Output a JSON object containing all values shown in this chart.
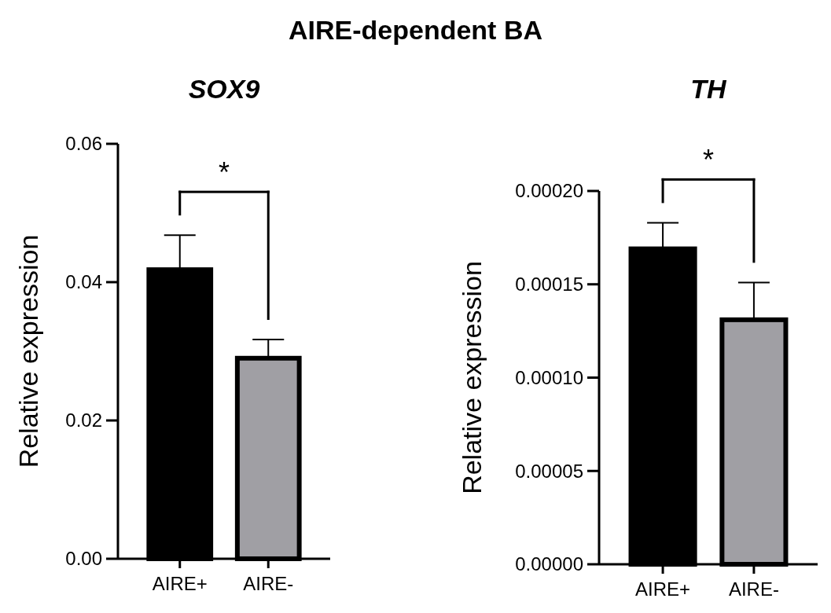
{
  "chart_data": [
    {
      "type": "bar",
      "title": "AIRE-dependent BA",
      "subtitle": "SOX9",
      "ylabel": "Relative expression",
      "categories": [
        "AIRE+",
        "AIRE-"
      ],
      "values": [
        0.0418,
        0.029
      ],
      "colors": [
        "#000000",
        "#a09fa4"
      ],
      "errors": [
        [
          0.0418,
          0.0468
        ],
        [
          0.029,
          0.0317
        ]
      ],
      "ylim": [
        0,
        0.06
      ],
      "yticks": [
        {
          "value": 0,
          "label": "0.00"
        },
        {
          "value": 0.02,
          "label": "0.02"
        },
        {
          "value": 0.04,
          "label": "0.04"
        },
        {
          "value": 0.06,
          "label": "0.06"
        }
      ],
      "annotations": [
        "*"
      ]
    },
    {
      "type": "bar",
      "title": "TH",
      "ylabel": "Relative expression",
      "categories": [
        "AIRE+",
        "AIRE-"
      ],
      "values": [
        0.000169,
        0.000131
      ],
      "colors": [
        "#000000",
        "#a09fa4"
      ],
      "errors": [
        [
          0.000169,
          0.000183
        ],
        [
          0.000131,
          0.000151
        ]
      ],
      "ylim": [
        0,
        0.0002
      ],
      "yticks": [
        {
          "value": 0,
          "label": "0.00000"
        },
        {
          "value": 5e-05,
          "label": "0.00005"
        },
        {
          "value": 0.0001,
          "label": "0.00010"
        },
        {
          "value": 0.00015,
          "label": "0.00015"
        },
        {
          "value": 0.0002,
          "label": "0.00020"
        }
      ],
      "annotations": [
        "*"
      ]
    }
  ]
}
